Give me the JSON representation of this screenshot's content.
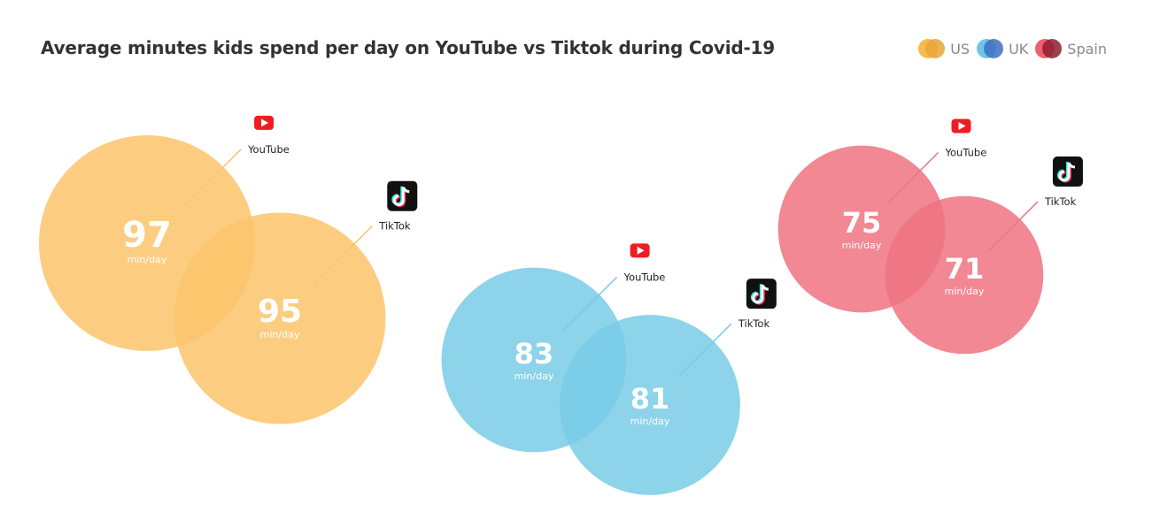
{
  "title": "Average minutes kids spend per day on YouTube vs Tiktok during Covid-19",
  "legend": [
    {
      "label": "US",
      "color": "#f9b94c",
      "color2": "#e9a53a"
    },
    {
      "label": "UK",
      "color": "#6ec6e6",
      "color2": "#3f6fc1"
    },
    {
      "label": "Spain",
      "color": "#ee5f6f",
      "color2": "#8e1f33"
    }
  ],
  "chart_data": {
    "type": "bubble",
    "title": "Average minutes kids spend per day on YouTube vs Tiktok during Covid-19",
    "unit": "min/day",
    "categories": [
      "YouTube",
      "TikTok"
    ],
    "series": [
      {
        "name": "US",
        "color": "#fcc46b",
        "values": [
          97,
          95
        ]
      },
      {
        "name": "UK",
        "color": "#79cbe6",
        "values": [
          83,
          81
        ]
      },
      {
        "name": "Spain",
        "color": "#ef7381",
        "values": [
          75,
          71
        ]
      }
    ]
  }
}
